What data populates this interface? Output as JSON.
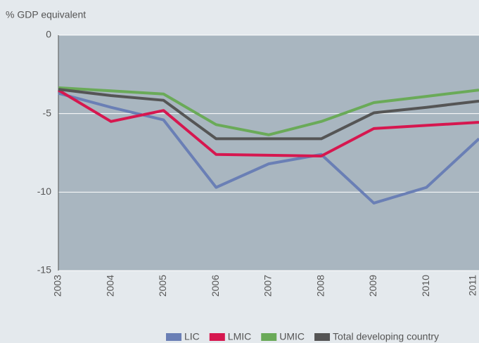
{
  "chart_data": {
    "type": "line",
    "y_label": "% GDP equivalent",
    "categories": [
      "2003",
      "2004",
      "2005",
      "2006",
      "2007",
      "2008",
      "2009",
      "2010",
      "2011"
    ],
    "series": [
      {
        "name": "LIC",
        "color": "#6a7fb5",
        "values": [
          -3.7,
          -4.6,
          -5.4,
          -9.7,
          -8.2,
          -7.6,
          -10.7,
          -9.7,
          -6.6
        ]
      },
      {
        "name": "LMIC",
        "color": "#d6174f",
        "values": [
          -3.5,
          -5.5,
          -4.8,
          -7.6,
          -7.65,
          -7.7,
          -5.95,
          -5.75,
          -5.55
        ]
      },
      {
        "name": "UMIC",
        "color": "#6aaa58",
        "values": [
          -3.35,
          -3.55,
          -3.75,
          -5.7,
          -6.35,
          -5.5,
          -4.3,
          -3.9,
          -3.5
        ]
      },
      {
        "name": "Total developing country",
        "color": "#555555",
        "values": [
          -3.45,
          -3.85,
          -4.15,
          -6.6,
          -6.6,
          -6.6,
          -4.95,
          -4.6,
          -4.2
        ]
      }
    ],
    "ylim": [
      -15,
      0
    ],
    "yticks": [
      0,
      -5,
      -10,
      -15
    ],
    "grid": true
  }
}
